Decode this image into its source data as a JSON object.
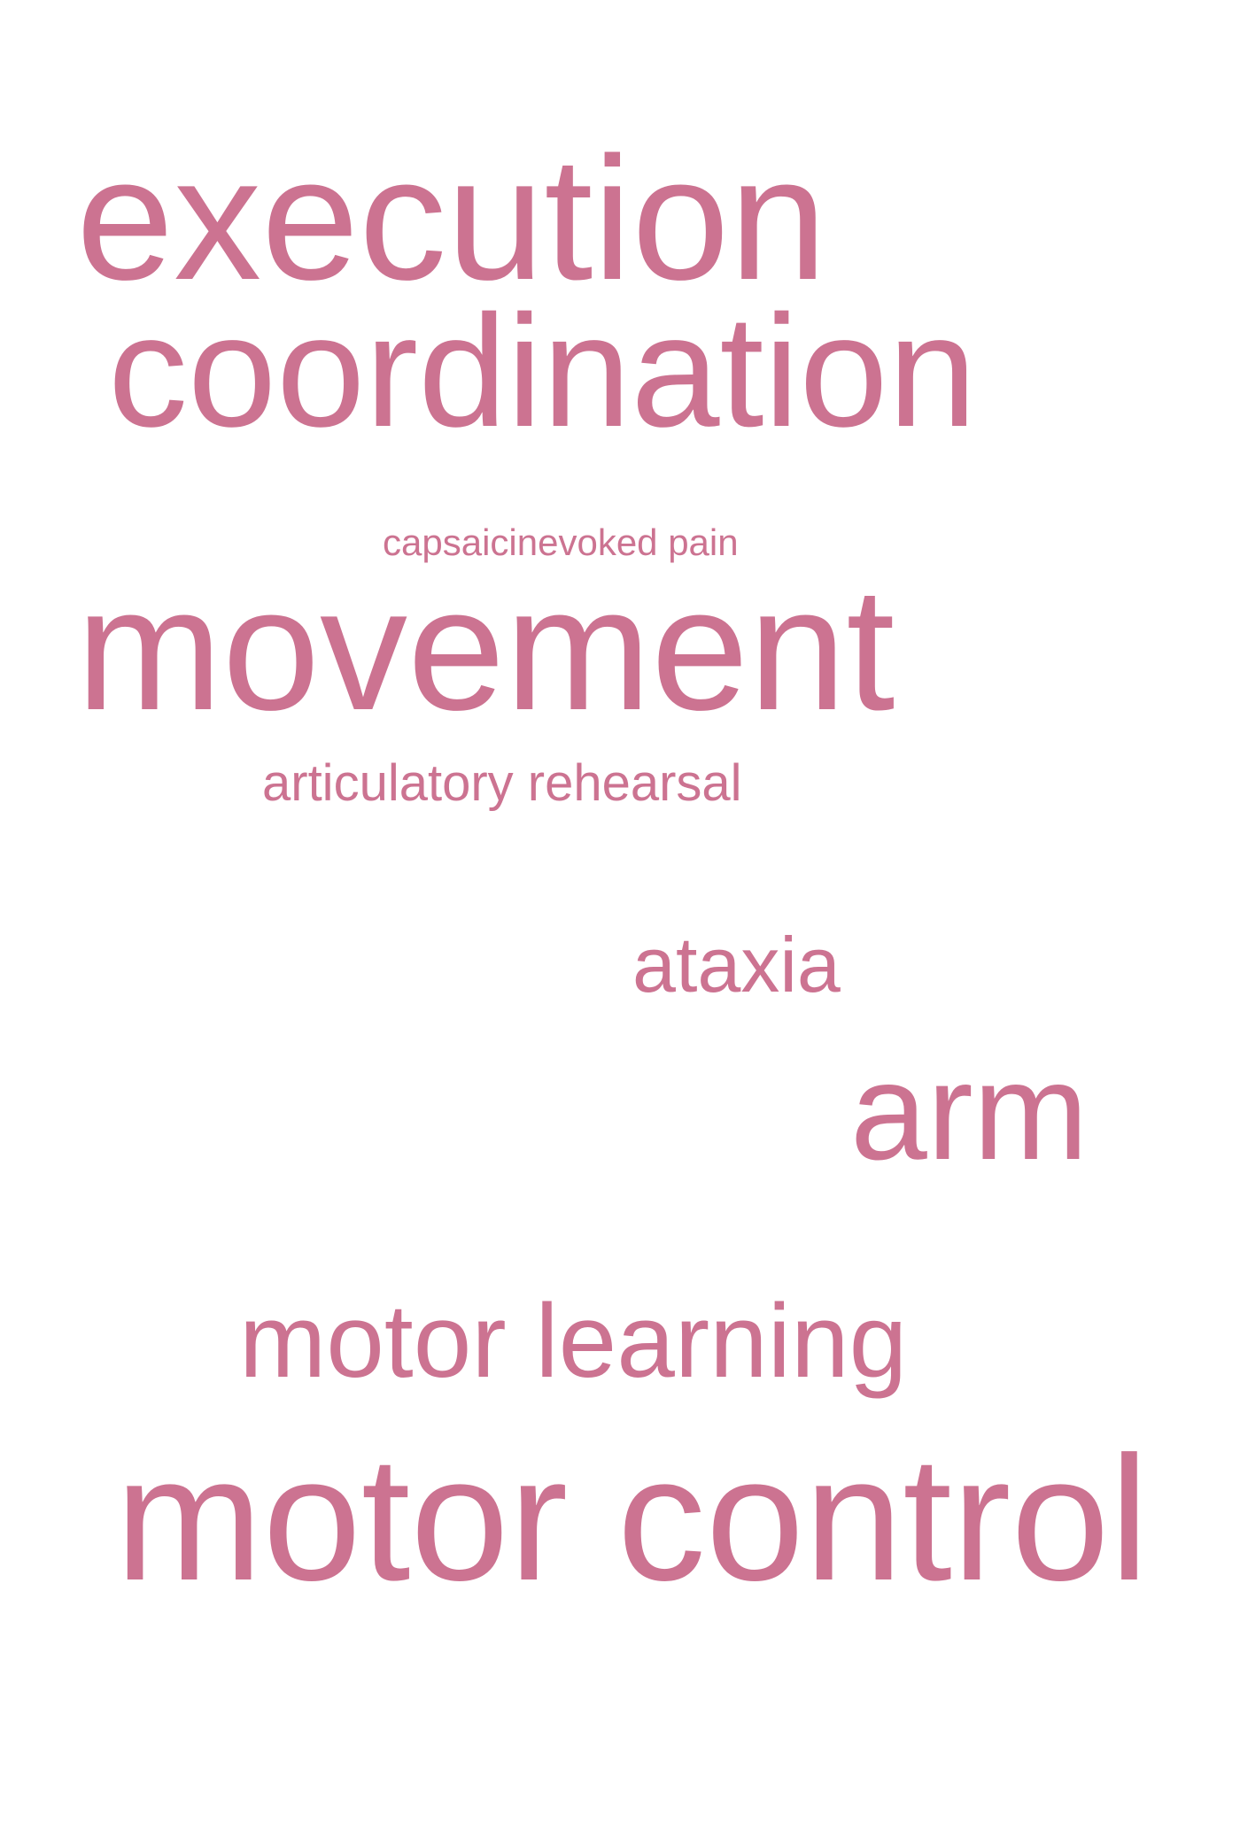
{
  "colors": {
    "word": "#cc7391",
    "background": "#ffffff"
  },
  "words": [
    "execution",
    "coordination",
    "capsaicinevoked pain",
    "movement",
    "articulatory rehearsal",
    "ataxia",
    "arm",
    "motor learning",
    "motor control"
  ]
}
